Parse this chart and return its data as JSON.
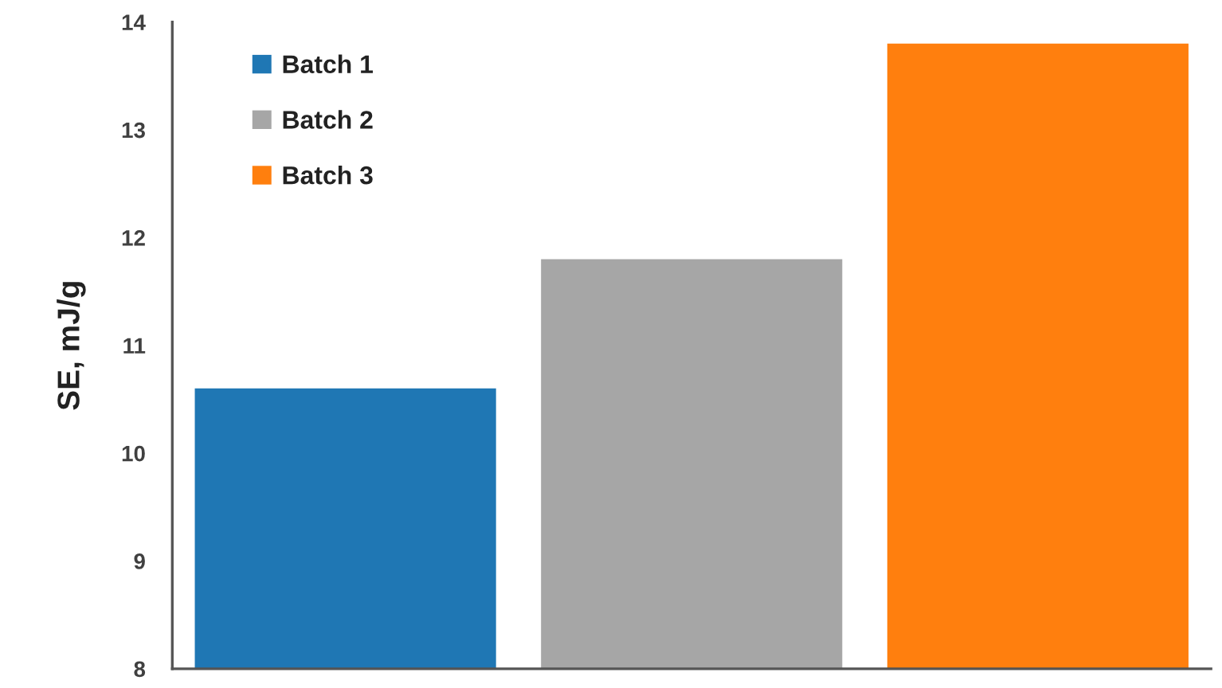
{
  "chart_data": {
    "type": "bar",
    "ylabel": "SE, mJ/g",
    "categories": [
      null
    ],
    "series": [
      {
        "name": "Batch 1",
        "color": "#1f77b4",
        "values": [
          10.6
        ]
      },
      {
        "name": "Batch 2",
        "color": "#a6a6a6",
        "values": [
          11.8
        ]
      },
      {
        "name": "Batch 3",
        "color": "#ff7f0e",
        "values": [
          13.8
        ]
      }
    ],
    "ylim": [
      8,
      14
    ],
    "yticks": [
      8,
      9,
      10,
      11,
      12,
      13,
      14
    ],
    "tick_labels": "y",
    "legend": "top left",
    "grid": false
  }
}
